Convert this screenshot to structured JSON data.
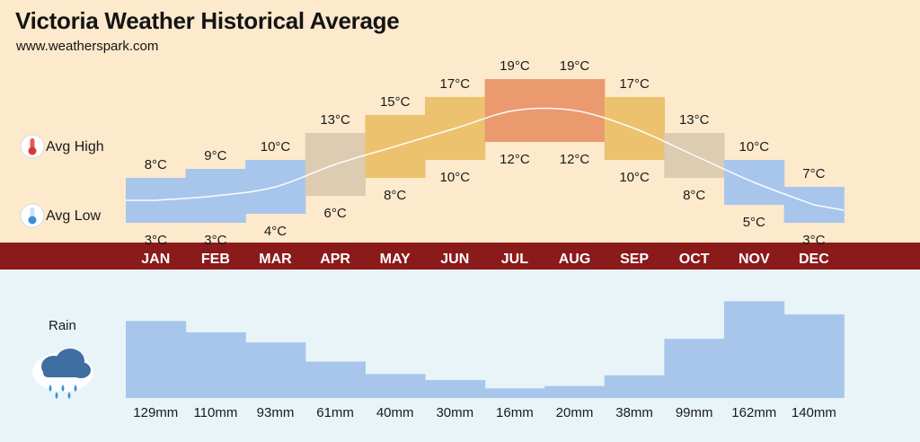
{
  "header": {
    "title": "Victoria Weather Historical Average",
    "subtitle": "www.weatherspark.com"
  },
  "legend": {
    "high_label": "Avg High",
    "low_label": "Avg Low",
    "rain_label": "Rain",
    "high_icon": "thermometer-hot-icon",
    "low_icon": "thermometer-cold-icon",
    "rain_icon": "rain-cloud-icon"
  },
  "colors": {
    "cold": "#a8c6ec",
    "mild": "#ddcbb2",
    "warm": "#ecc26e",
    "hot": "#eb9a70",
    "month_bar": "#8b1a1a",
    "rain": "#a8c6ec"
  },
  "chart_data": [
    {
      "type": "bar",
      "categories": [
        "JAN",
        "FEB",
        "MAR",
        "APR",
        "MAY",
        "JUN",
        "JUL",
        "AUG",
        "SEP",
        "OCT",
        "NOV",
        "DEC"
      ],
      "series": [
        {
          "name": "Avg High",
          "values": [
            8,
            9,
            10,
            13,
            15,
            17,
            19,
            19,
            17,
            13,
            10,
            7
          ],
          "labels": [
            "8°C",
            "9°C",
            "10°C",
            "13°C",
            "15°C",
            "17°C",
            "19°C",
            "19°C",
            "17°C",
            "13°C",
            "10°C",
            "7°C"
          ]
        },
        {
          "name": "Avg Low",
          "values": [
            3,
            3,
            4,
            6,
            8,
            10,
            12,
            12,
            10,
            8,
            5,
            3
          ],
          "labels": [
            "3°C",
            "3°C",
            "4°C",
            "6°C",
            "8°C",
            "10°C",
            "12°C",
            "12°C",
            "10°C",
            "8°C",
            "5°C",
            "3°C"
          ]
        }
      ],
      "band_color": [
        "cold",
        "cold",
        "cold",
        "mild",
        "warm",
        "warm",
        "hot",
        "hot",
        "warm",
        "mild",
        "cold",
        "cold"
      ],
      "ylim": [
        1,
        21
      ]
    },
    {
      "type": "bar",
      "categories": [
        "JAN",
        "FEB",
        "MAR",
        "APR",
        "MAY",
        "JUN",
        "JUL",
        "AUG",
        "SEP",
        "OCT",
        "NOV",
        "DEC"
      ],
      "series": [
        {
          "name": "Rain",
          "values": [
            129,
            110,
            93,
            61,
            40,
            30,
            16,
            20,
            38,
            99,
            162,
            140
          ],
          "labels": [
            "129mm",
            "110mm",
            "93mm",
            "61mm",
            "40mm",
            "30mm",
            "16mm",
            "20mm",
            "38mm",
            "99mm",
            "162mm",
            "140mm"
          ]
        }
      ],
      "ylim": [
        0,
        170
      ]
    }
  ]
}
